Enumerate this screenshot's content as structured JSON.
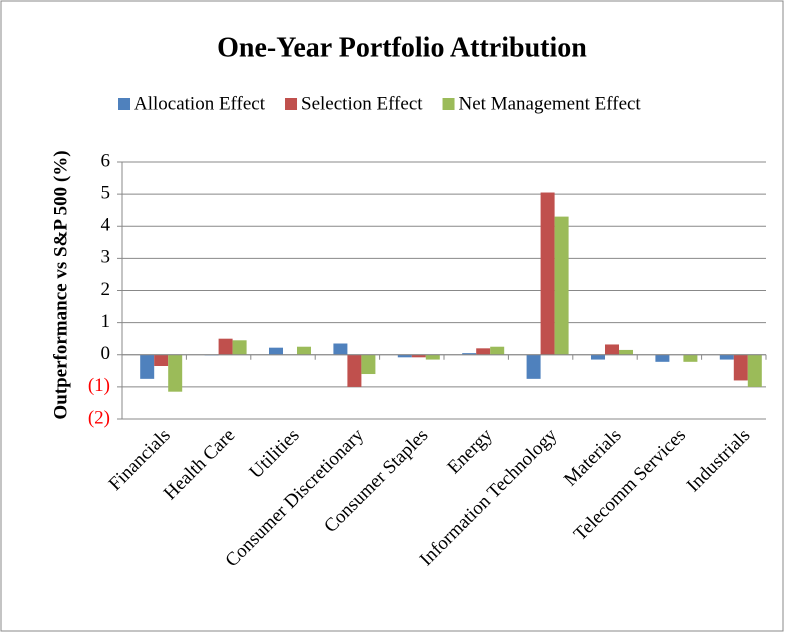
{
  "chart_data": {
    "type": "bar",
    "title": "One-Year Portfolio Attribution",
    "y_label": "Outperformance vs S&P 500 (%)",
    "categories": [
      "Financials",
      "Health Care",
      "Utilities",
      "Consumer Discretionary",
      "Consumer Staples",
      "Energy",
      "Information Technology",
      "Materials",
      "Telecomm Services",
      "Industrials"
    ],
    "series": [
      {
        "name": "Allocation Effect",
        "color": "#4f81bd",
        "values": [
          -0.75,
          -0.02,
          0.22,
          0.35,
          -0.08,
          0.05,
          -0.75,
          -0.15,
          -0.22,
          -0.15
        ]
      },
      {
        "name": "Selection Effect",
        "color": "#c0504d",
        "values": [
          -0.35,
          0.5,
          0,
          -1.0,
          -0.08,
          0.2,
          5.05,
          0.32,
          0,
          -0.8
        ]
      },
      {
        "name": "Net Management Effect",
        "color": "#9bbb59",
        "values": [
          -1.15,
          0.45,
          0.25,
          -0.6,
          -0.15,
          0.25,
          4.3,
          0.15,
          -0.22,
          -1.0
        ]
      }
    ],
    "ylim": [
      -2,
      6
    ],
    "yticks": [
      6,
      5,
      4,
      3,
      2,
      1,
      0,
      {
        "value": -1,
        "label": "(1)"
      },
      {
        "value": -2,
        "label": "(2)"
      }
    ],
    "negative_tick_color": "#ff0000",
    "grid": true,
    "legend": "top"
  }
}
